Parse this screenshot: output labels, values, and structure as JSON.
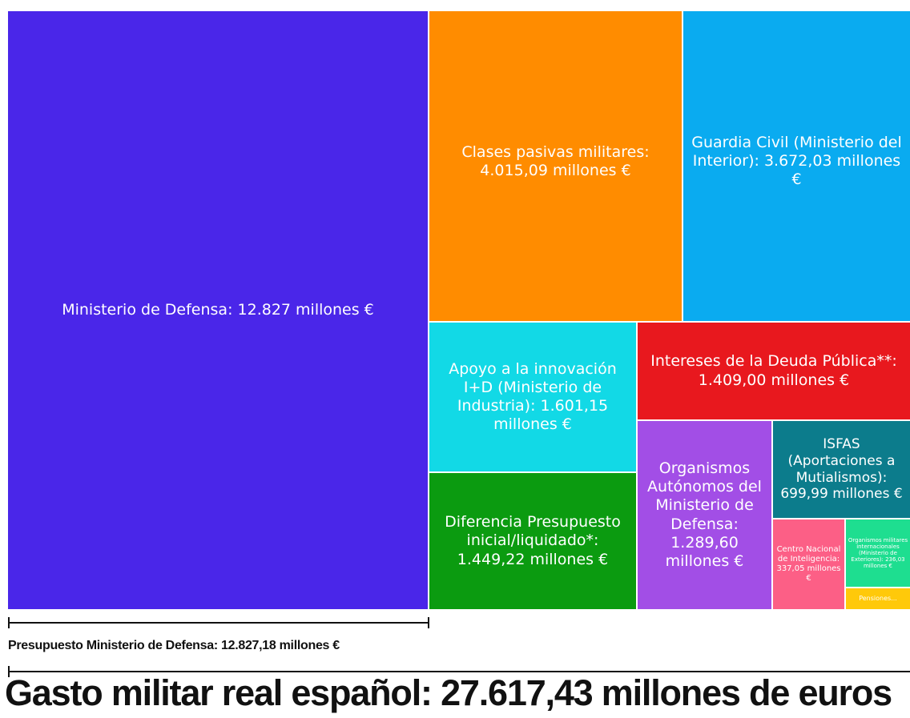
{
  "chart_data": {
    "type": "treemap",
    "unit": "millones €",
    "tiles": [
      {
        "label": "Ministerio de Defensa: 12.827 millones €",
        "value": 12827,
        "color": "#4a26e9"
      },
      {
        "label": "Clases pasivas militares: 4.015,09 millones €",
        "value": 4015.09,
        "color": "#ff8c00"
      },
      {
        "label": "Guardia Civil (Ministerio del Interior): 3.672,03 millones €",
        "value": 3672.03,
        "color": "#0aabf0"
      },
      {
        "label": "Apoyo a la innovación I+D (Ministerio de Industria): 1.601,15 millones €",
        "value": 1601.15,
        "color": "#12d9e6"
      },
      {
        "label": "Intereses de la Deuda Pública**: 1.409,00 millones €",
        "value": 1409.0,
        "color": "#e8181e"
      },
      {
        "label": "Diferencia Presupuesto inicial/liquidado*: 1.449,22 millones €",
        "value": 1449.22,
        "color": "#0b9b10"
      },
      {
        "label": "Organismos Autónomos del Ministerio de Defensa: 1.289,60 millones €",
        "value": 1289.6,
        "color": "#a24ee6"
      },
      {
        "label": "ISFAS (Aportaciones a Mutialismos): 699,99 millones €",
        "value": 699.99,
        "color": "#0c7c8c"
      },
      {
        "label": "Centro Nacional de Inteligencia: 337,05 millones €",
        "value": 337.05,
        "color": "#fc5f86"
      },
      {
        "label": "Organismos militares internacionales (Ministerio de Exteriores): 236,03 millones €",
        "value": 236.03,
        "color": "#1ede90"
      },
      {
        "label": "Pensiones...",
        "value": null,
        "color": "#ffc90a"
      }
    ],
    "bracket_label": "Presupuesto Ministerio de Defensa: 12.827,18 millones €",
    "title": "Gasto militar real español: 27.617,43 millones de euros"
  }
}
